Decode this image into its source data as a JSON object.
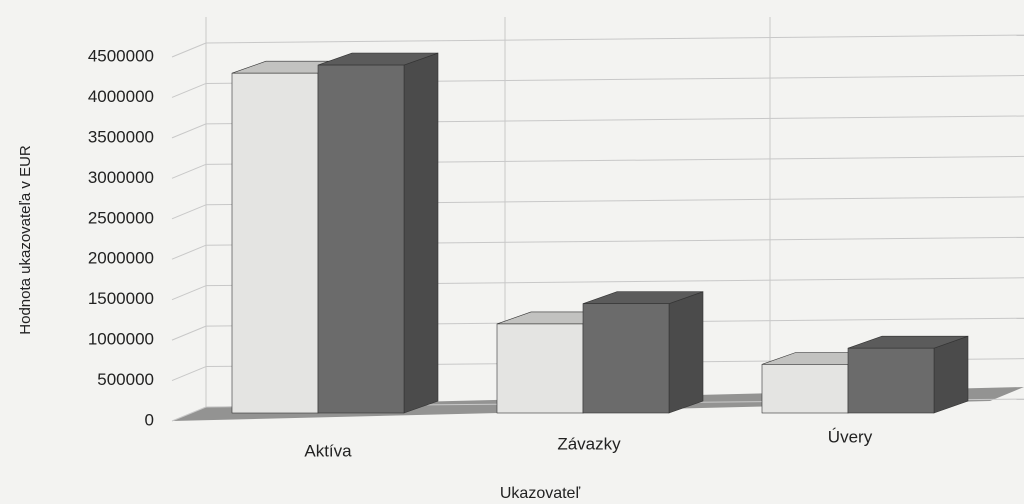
{
  "chart_data": {
    "type": "bar3d",
    "categories": [
      "Aktíva",
      "Závazky",
      "Úvery"
    ],
    "series": [
      {
        "color": "#e4e4e2",
        "values": [
          4300000,
          1200000,
          700000
        ]
      },
      {
        "color": "#6b6b6b",
        "values": [
          4400000,
          1450000,
          900000
        ]
      }
    ],
    "ylabel": "Hodnota ukazovateľa v EUR",
    "xlabel": "Ukazovateľ",
    "ylim": [
      0,
      4500000
    ],
    "yticks": [
      0,
      500000,
      1000000,
      1500000,
      2000000,
      2500000,
      3000000,
      3500000,
      4000000,
      4500000
    ],
    "grid": true
  }
}
